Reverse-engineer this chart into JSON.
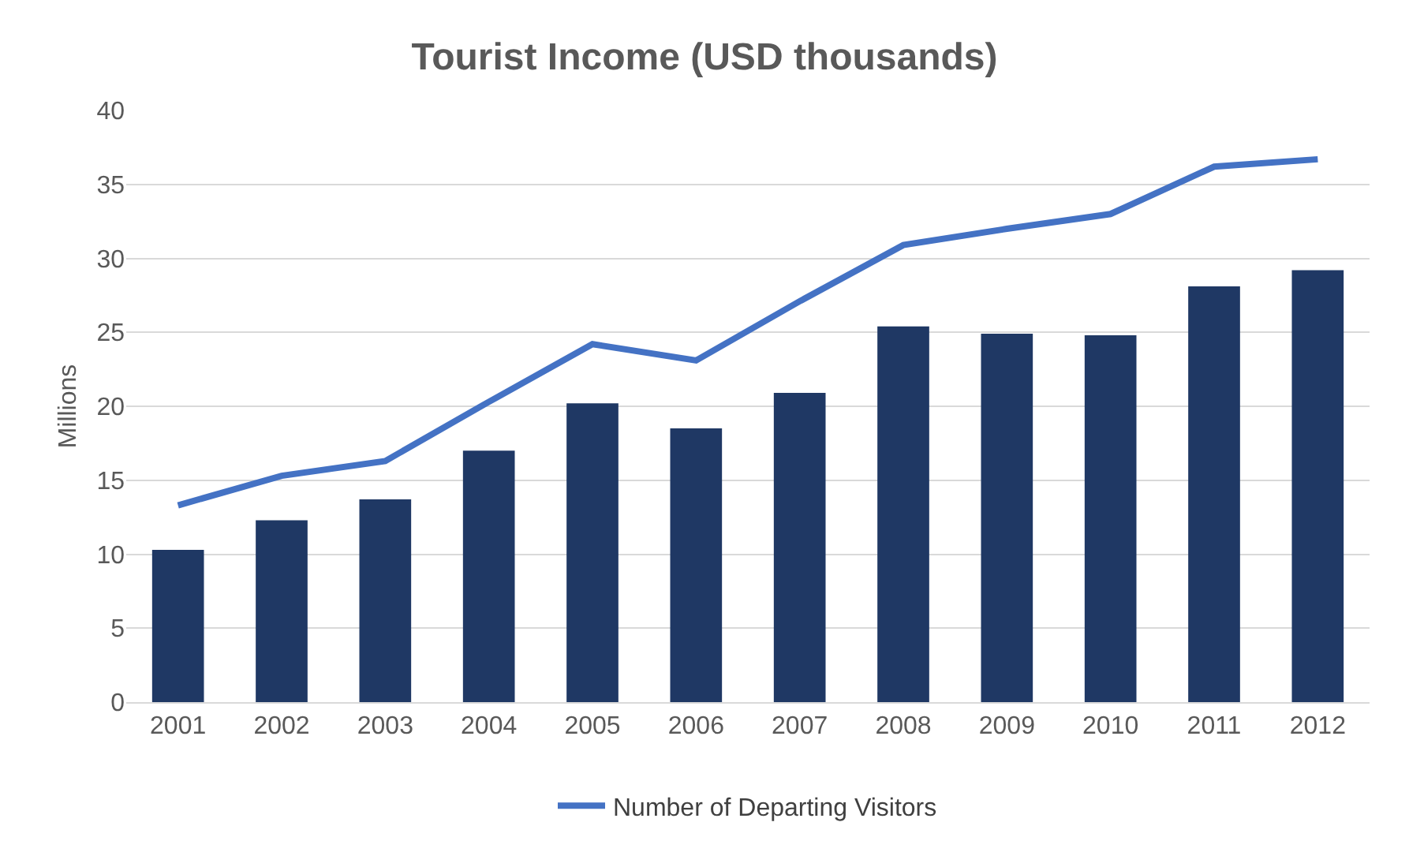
{
  "chart_data": {
    "type": "bar",
    "title": "Tourist Income (USD thousands)",
    "ylabel": "Millions",
    "categories": [
      "2001",
      "2002",
      "2003",
      "2004",
      "2005",
      "2006",
      "2007",
      "2008",
      "2009",
      "2010",
      "2011",
      "2012"
    ],
    "series": [
      {
        "color": "#1f3864",
        "values": [
          10.3,
          12.3,
          13.7,
          17.0,
          20.2,
          18.5,
          20.9,
          25.4,
          24.9,
          24.8,
          28.1,
          29.2
        ]
      },
      {
        "type": "line",
        "name": "Number of Departing Visitors",
        "color": "#4472c4",
        "values": [
          13.3,
          15.3,
          16.3,
          20.3,
          24.2,
          23.1,
          27.1,
          30.9,
          32.0,
          33.0,
          36.2,
          36.7
        ]
      }
    ],
    "ylim": [
      0,
      40
    ],
    "yticks": [
      0,
      5,
      10,
      15,
      20,
      25,
      30,
      35,
      40
    ],
    "grid": "y",
    "legend": "bottom",
    "marker": "none",
    "line_style": "solid"
  }
}
